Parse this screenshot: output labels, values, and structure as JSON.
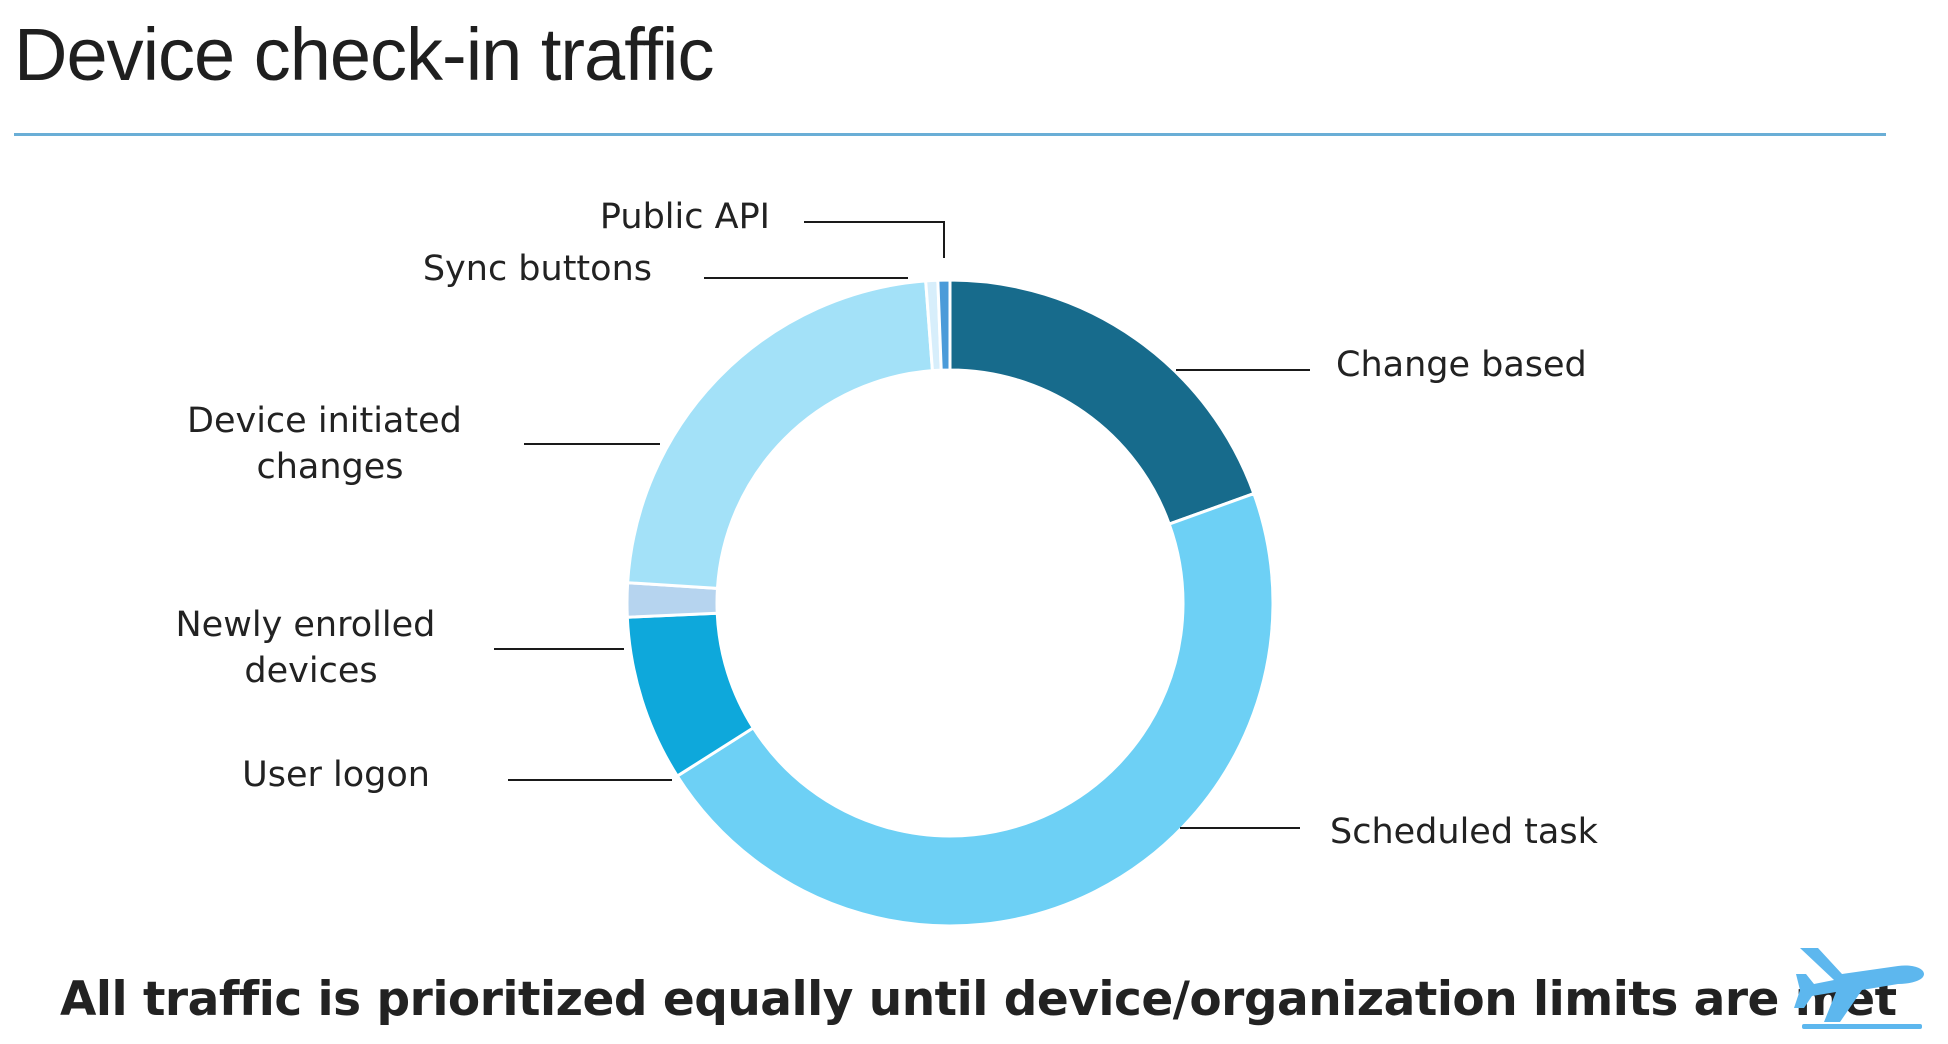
{
  "slide": {
    "title": "Device check-in traffic",
    "footer": "All traffic is prioritized equally until device/organization limits are met"
  },
  "icons": {
    "footer_icon": "airplane-icon"
  },
  "chart_data": {
    "type": "pie",
    "subtype": "donut",
    "title": "",
    "start": "top",
    "direction": "clockwise",
    "slices": [
      {
        "label": "Change based",
        "value": 19.5,
        "color": "#176b8c"
      },
      {
        "label": "Scheduled task",
        "value": 46.5,
        "color": "#6dd0f5"
      },
      {
        "label": "User logon",
        "value": 8.3,
        "color": "#0ea8db"
      },
      {
        "label": "Newly enrolled devices",
        "value": 1.7,
        "color": "#b6d4ef"
      },
      {
        "label": "Device initiated changes",
        "value": 22.8,
        "color": "#a3e1f8"
      },
      {
        "label": "Sync buttons",
        "value": 0.6,
        "color": "#d7eefb"
      },
      {
        "label": "Public API",
        "value": 0.6,
        "color": "#4b9bd9"
      }
    ],
    "legend": "callout labels"
  }
}
